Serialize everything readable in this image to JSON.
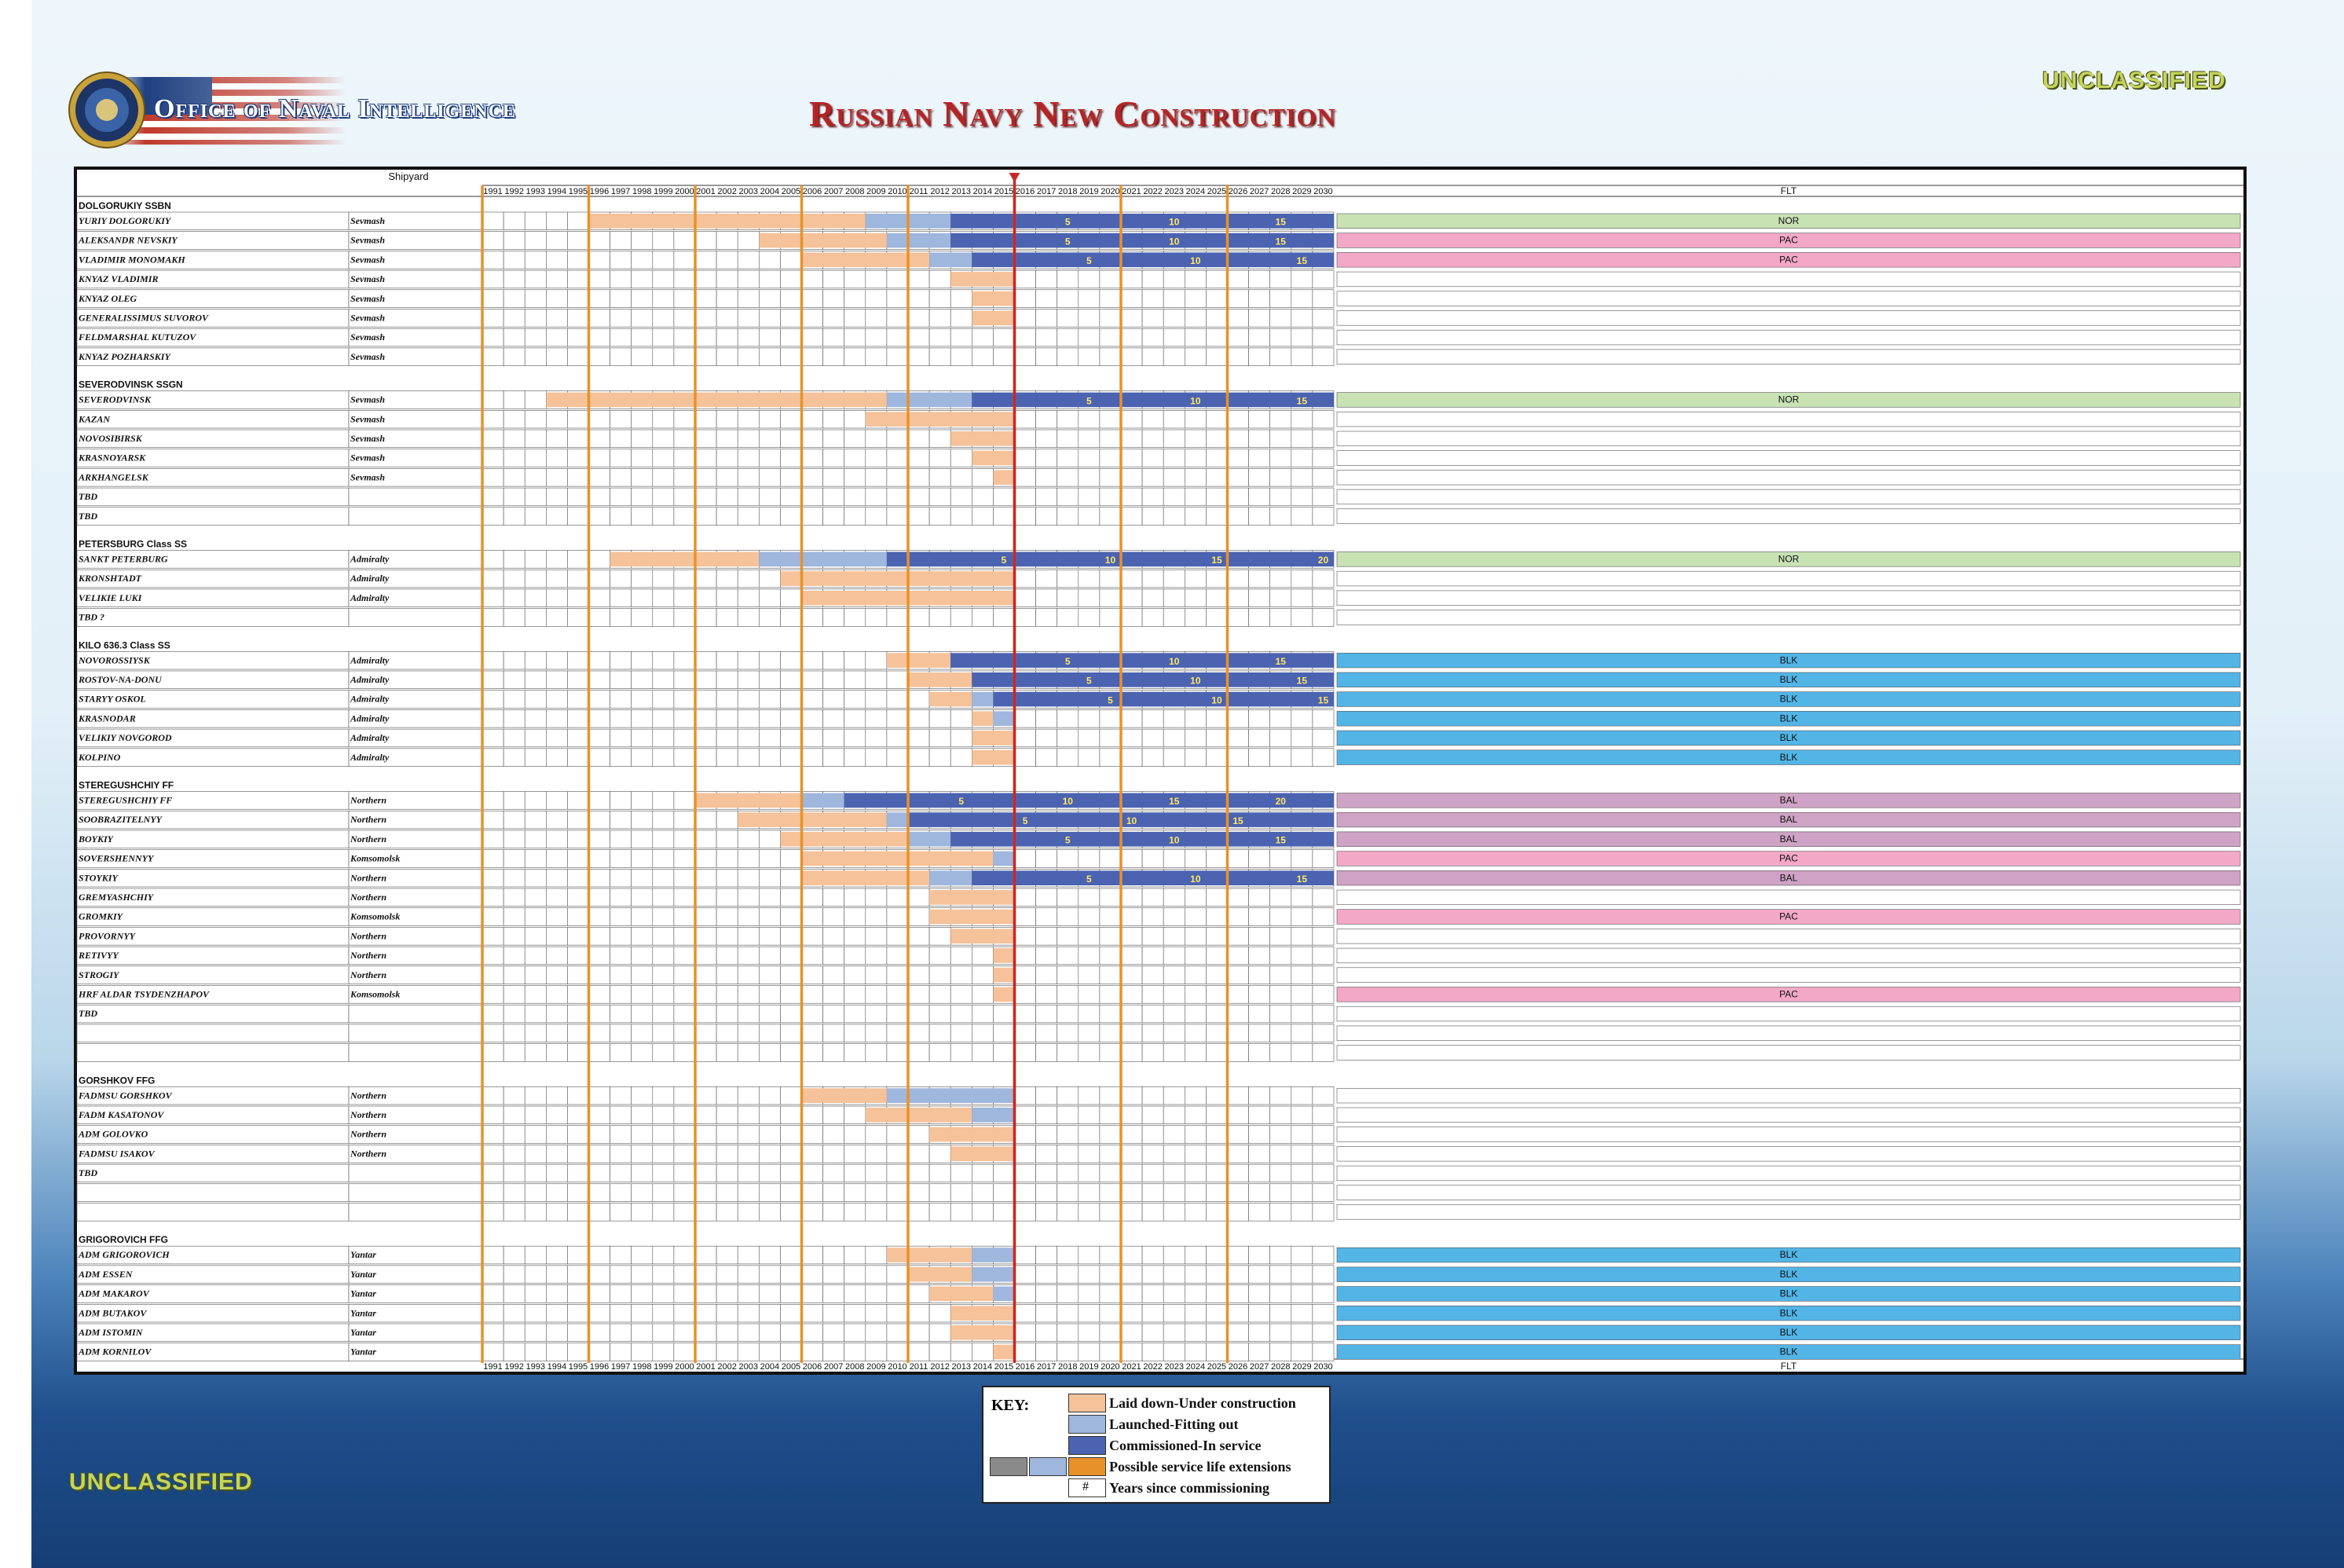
{
  "header": {
    "agency": "Office of Naval Intelligence",
    "title": "Russian Navy New Construction",
    "classification_top": "UNCLASSIFIED",
    "classification_bottom": "UNCLASSIFIED"
  },
  "colors": {
    "construction": "#f5c29a",
    "fitting_out": "#9fb6dd",
    "in_service": "#4b63b0",
    "extension": "#e8912a",
    "nor": "#c8e2b4",
    "pac": "#f4a8c8",
    "blk": "#53b4e6",
    "bal": "#cfa3c5",
    "milestone_text": "#ffe866",
    "orange_line": "#e8912a",
    "today_line": "#c62828"
  },
  "key": {
    "title": "KEY:",
    "items": [
      {
        "label": "Laid down-Under construction",
        "color": "#f5c29a"
      },
      {
        "label": "Launched-Fitting out",
        "color": "#9fb6dd"
      },
      {
        "label": "Commissioned-In service",
        "color": "#4b63b0"
      },
      {
        "label": "Possible service life extensions",
        "color": "#e8912a"
      },
      {
        "label": "Years since commissioning",
        "symbol": "#"
      }
    ]
  },
  "chart_data": {
    "type": "table",
    "shipyard_header": "Shipyard",
    "fleet_header": "FLT",
    "years": [
      1991,
      1992,
      1993,
      1994,
      1995,
      1996,
      1997,
      1998,
      1999,
      2000,
      2001,
      2002,
      2003,
      2004,
      2005,
      2006,
      2007,
      2008,
      2009,
      2010,
      2011,
      2012,
      2013,
      2014,
      2015,
      2016,
      2017,
      2018,
      2019,
      2020,
      2021,
      2022,
      2023,
      2024,
      2025,
      2026,
      2027,
      2028,
      2029,
      2030
    ],
    "current_year_marker": 2016,
    "classes": [
      {
        "name": "DOLGORUKIY SSBN",
        "ships": [
          {
            "name": "YURIY DOLGORUKIY",
            "yard": "Sevmash",
            "laid": 1996,
            "launch": 2009,
            "comm": 2013,
            "fleet": "NOR",
            "marks": [
              [
                2018,
                "5"
              ],
              [
                2023,
                "10"
              ],
              [
                2028,
                "15"
              ]
            ]
          },
          {
            "name": "ALEKSANDR NEVSKIY",
            "yard": "Sevmash",
            "laid": 2004,
            "launch": 2010,
            "comm": 2013,
            "fleet": "PAC",
            "marks": [
              [
                2018,
                "5"
              ],
              [
                2023,
                "10"
              ],
              [
                2028,
                "15"
              ]
            ]
          },
          {
            "name": "VLADIMIR MONOMAKH",
            "yard": "Sevmash",
            "laid": 2006,
            "launch": 2012,
            "comm": 2014,
            "fleet": "PAC",
            "marks": [
              [
                2019,
                "5"
              ],
              [
                2024,
                "10"
              ],
              [
                2029,
                "15"
              ]
            ]
          },
          {
            "name": "KNYAZ VLADIMIR",
            "yard": "Sevmash",
            "laid": 2013,
            "launch": null,
            "comm": null,
            "fleet": "",
            "marks": []
          },
          {
            "name": "KNYAZ OLEG",
            "yard": "Sevmash",
            "laid": 2014,
            "launch": null,
            "comm": null,
            "fleet": "",
            "marks": []
          },
          {
            "name": "GENERALISSIMUS SUVOROV",
            "yard": "Sevmash",
            "laid": 2014,
            "launch": null,
            "comm": null,
            "fleet": "",
            "marks": []
          },
          {
            "name": "FELDMARSHAL KUTUZOV",
            "yard": "Sevmash",
            "laid": null,
            "launch": null,
            "comm": null,
            "fleet": "",
            "marks": []
          },
          {
            "name": "KNYAZ POZHARSKIY",
            "yard": "Sevmash",
            "laid": null,
            "launch": null,
            "comm": null,
            "fleet": "",
            "marks": []
          }
        ]
      },
      {
        "name": "SEVERODVINSK SSGN",
        "ships": [
          {
            "name": "SEVERODVINSK",
            "yard": "Sevmash",
            "laid": 1994,
            "launch": 2010,
            "comm": 2014,
            "fleet": "NOR",
            "marks": [
              [
                2019,
                "5"
              ],
              [
                2024,
                "10"
              ],
              [
                2029,
                "15"
              ]
            ]
          },
          {
            "name": "KAZAN",
            "yard": "Sevmash",
            "laid": 2009,
            "launch": null,
            "comm": null,
            "fleet": "",
            "marks": []
          },
          {
            "name": "NOVOSIBIRSK",
            "yard": "Sevmash",
            "laid": 2013,
            "launch": null,
            "comm": null,
            "fleet": "",
            "marks": []
          },
          {
            "name": "KRASNOYARSK",
            "yard": "Sevmash",
            "laid": 2014,
            "launch": null,
            "comm": null,
            "fleet": "",
            "marks": []
          },
          {
            "name": "ARKHANGELSK",
            "yard": "Sevmash",
            "laid": 2015,
            "launch": null,
            "comm": null,
            "fleet": "",
            "marks": []
          },
          {
            "name": "TBD",
            "yard": "",
            "laid": null,
            "launch": null,
            "comm": null,
            "fleet": "",
            "marks": []
          },
          {
            "name": "TBD",
            "yard": "",
            "laid": null,
            "launch": null,
            "comm": null,
            "fleet": "",
            "marks": []
          }
        ]
      },
      {
        "name": "PETERSBURG Class SS",
        "ships": [
          {
            "name": "SANKT PETERBURG",
            "yard": "Admiralty",
            "laid": 1997,
            "launch": 2004,
            "comm": 2010,
            "fleet": "NOR",
            "marks": [
              [
                2015,
                "5"
              ],
              [
                2020,
                "10"
              ],
              [
                2025,
                "15"
              ],
              [
                2030,
                "20"
              ]
            ]
          },
          {
            "name": "KRONSHTADT",
            "yard": "Admiralty",
            "laid": 2005,
            "launch": null,
            "comm": null,
            "fleet": "",
            "marks": []
          },
          {
            "name": "VELIKIE LUKI",
            "yard": "Admiralty",
            "laid": 2006,
            "launch": null,
            "comm": null,
            "fleet": "",
            "marks": []
          },
          {
            "name": "TBD ?",
            "yard": "",
            "laid": null,
            "launch": null,
            "comm": null,
            "fleet": "",
            "marks": []
          }
        ]
      },
      {
        "name": "KILO 636.3 Class SS",
        "ships": [
          {
            "name": "NOVOROSSIYSK",
            "yard": "Admiralty",
            "laid": 2010,
            "launch": 2013,
            "comm": 2013,
            "fleet": "BLK",
            "marks": [
              [
                2018,
                "5"
              ],
              [
                2023,
                "10"
              ],
              [
                2028,
                "15"
              ]
            ]
          },
          {
            "name": "ROSTOV-NA-DONU",
            "yard": "Admiralty",
            "laid": 2011,
            "launch": 2014,
            "comm": 2014,
            "fleet": "BLK",
            "marks": [
              [
                2019,
                "5"
              ],
              [
                2024,
                "10"
              ],
              [
                2029,
                "15"
              ]
            ]
          },
          {
            "name": "STARYY OSKOL",
            "yard": "Admiralty",
            "laid": 2012,
            "launch": 2014,
            "comm": 2015,
            "fleet": "BLK",
            "marks": [
              [
                2020,
                "5"
              ],
              [
                2025,
                "10"
              ],
              [
                2030,
                "15"
              ]
            ]
          },
          {
            "name": "KRASNODAR",
            "yard": "Admiralty",
            "laid": 2014,
            "launch": 2015,
            "comm": null,
            "fleet": "BLK",
            "marks": []
          },
          {
            "name": "VELIKIY NOVGOROD",
            "yard": "Admiralty",
            "laid": 2014,
            "launch": null,
            "comm": null,
            "fleet": "BLK",
            "marks": []
          },
          {
            "name": "KOLPINO",
            "yard": "Admiralty",
            "laid": 2014,
            "launch": null,
            "comm": null,
            "fleet": "BLK",
            "marks": []
          }
        ]
      },
      {
        "name": "STEREGUSHCHIY FF",
        "ships": [
          {
            "name": "STEREGUSHCHIY FF",
            "yard": "Northern",
            "laid": 2001,
            "launch": 2006,
            "comm": 2008,
            "fleet": "BAL",
            "marks": [
              [
                2013,
                "5"
              ],
              [
                2018,
                "10"
              ],
              [
                2023,
                "15"
              ],
              [
                2028,
                "20"
              ]
            ]
          },
          {
            "name": "SOOBRAZITELNYY",
            "yard": "Northern",
            "laid": 2003,
            "launch": 2010,
            "comm": 2011,
            "fleet": "BAL",
            "marks": [
              [
                2016,
                "5"
              ],
              [
                2021,
                "10"
              ],
              [
                2026,
                "15"
              ]
            ]
          },
          {
            "name": "BOYKIY",
            "yard": "Northern",
            "laid": 2005,
            "launch": 2011,
            "comm": 2013,
            "fleet": "BAL",
            "marks": [
              [
                2018,
                "5"
              ],
              [
                2023,
                "10"
              ],
              [
                2028,
                "15"
              ]
            ]
          },
          {
            "name": "SOVERSHENNYY",
            "yard": "Komsomolsk",
            "laid": 2006,
            "launch": 2015,
            "comm": null,
            "fleet": "PAC",
            "marks": []
          },
          {
            "name": "STOYKIY",
            "yard": "Northern",
            "laid": 2006,
            "launch": 2012,
            "comm": 2014,
            "fleet": "BAL",
            "marks": [
              [
                2019,
                "5"
              ],
              [
                2024,
                "10"
              ],
              [
                2029,
                "15"
              ]
            ]
          },
          {
            "name": "GREMYASHCHIY",
            "yard": "Northern",
            "laid": 2012,
            "launch": null,
            "comm": null,
            "fleet": "",
            "marks": []
          },
          {
            "name": "GROMKIY",
            "yard": "Komsomolsk",
            "laid": 2012,
            "launch": null,
            "comm": null,
            "fleet": "PAC",
            "marks": []
          },
          {
            "name": "PROVORNYY",
            "yard": "Northern",
            "laid": 2013,
            "launch": null,
            "comm": null,
            "fleet": "",
            "marks": []
          },
          {
            "name": "RETIVYY",
            "yard": "Northern",
            "laid": 2015,
            "launch": null,
            "comm": null,
            "fleet": "",
            "marks": []
          },
          {
            "name": "STROGIY",
            "yard": "Northern",
            "laid": 2015,
            "launch": null,
            "comm": null,
            "fleet": "",
            "marks": []
          },
          {
            "name": "HRF ALDAR TSYDENZHAPOV",
            "yard": "Komsomolsk",
            "laid": 2015,
            "launch": null,
            "comm": null,
            "fleet": "PAC",
            "marks": []
          },
          {
            "name": "TBD",
            "yard": "",
            "laid": null,
            "launch": null,
            "comm": null,
            "fleet": "",
            "marks": []
          },
          {
            "name": "",
            "yard": "",
            "laid": null,
            "launch": null,
            "comm": null,
            "fleet": "",
            "marks": []
          },
          {
            "name": "",
            "yard": "",
            "laid": null,
            "launch": null,
            "comm": null,
            "fleet": "",
            "marks": []
          }
        ]
      },
      {
        "name": "GORSHKOV FFG",
        "ships": [
          {
            "name": "FADMSU GORSHKOV",
            "yard": "Northern",
            "laid": 2006,
            "launch": 2010,
            "comm": null,
            "fleet": "",
            "marks": []
          },
          {
            "name": "FADM KASATONOV",
            "yard": "Northern",
            "laid": 2009,
            "launch": 2014,
            "comm": null,
            "fleet": "",
            "marks": []
          },
          {
            "name": "ADM GOLOVKO",
            "yard": "Northern",
            "laid": 2012,
            "launch": null,
            "comm": null,
            "fleet": "",
            "marks": []
          },
          {
            "name": "FADMSU ISAKOV",
            "yard": "Northern",
            "laid": 2013,
            "launch": null,
            "comm": null,
            "fleet": "",
            "marks": []
          },
          {
            "name": "TBD",
            "yard": "",
            "laid": null,
            "launch": null,
            "comm": null,
            "fleet": "",
            "marks": []
          },
          {
            "name": "",
            "yard": "",
            "laid": null,
            "launch": null,
            "comm": null,
            "fleet": "",
            "marks": []
          },
          {
            "name": "",
            "yard": "",
            "laid": null,
            "launch": null,
            "comm": null,
            "fleet": "",
            "marks": []
          }
        ]
      },
      {
        "name": "GRIGOROVICH FFG",
        "ships": [
          {
            "name": "ADM GRIGOROVICH",
            "yard": "Yantar",
            "laid": 2010,
            "launch": 2014,
            "comm": null,
            "fleet": "BLK",
            "marks": []
          },
          {
            "name": "ADM ESSEN",
            "yard": "Yantar",
            "laid": 2011,
            "launch": 2014,
            "comm": null,
            "fleet": "BLK",
            "marks": []
          },
          {
            "name": "ADM MAKAROV",
            "yard": "Yantar",
            "laid": 2012,
            "launch": 2015,
            "comm": null,
            "fleet": "BLK",
            "marks": []
          },
          {
            "name": "ADM BUTAKOV",
            "yard": "Yantar",
            "laid": 2013,
            "launch": null,
            "comm": null,
            "fleet": "BLK",
            "marks": []
          },
          {
            "name": "ADM ISTOMIN",
            "yard": "Yantar",
            "laid": 2013,
            "launch": null,
            "comm": null,
            "fleet": "BLK",
            "marks": []
          },
          {
            "name": "ADM KORNILOV",
            "yard": "Yantar",
            "laid": 2015,
            "launch": null,
            "comm": null,
            "fleet": "BLK",
            "marks": []
          }
        ]
      }
    ]
  }
}
